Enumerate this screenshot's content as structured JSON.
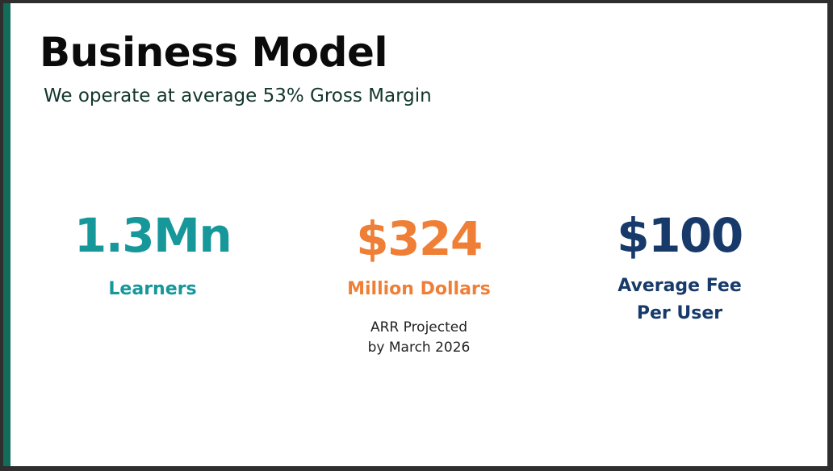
{
  "slide": {
    "title": "Business Model",
    "subtitle": "We operate at average 53% Gross Margin"
  },
  "stats": [
    {
      "value": "1.3Mn",
      "label": "Learners",
      "color": "#16979a"
    },
    {
      "value": "$324",
      "label": "Million Dollars",
      "note_lines": [
        "ARR Projected",
        "by March 2026"
      ],
      "color": "#ef7f36"
    },
    {
      "value": "$100",
      "label_lines": [
        "Average Fee",
        "Per User"
      ],
      "color": "#173a6b"
    }
  ],
  "colors": {
    "accent_bar": "#136b5a",
    "title": "#0b0b0b",
    "subtitle": "#12362d"
  }
}
